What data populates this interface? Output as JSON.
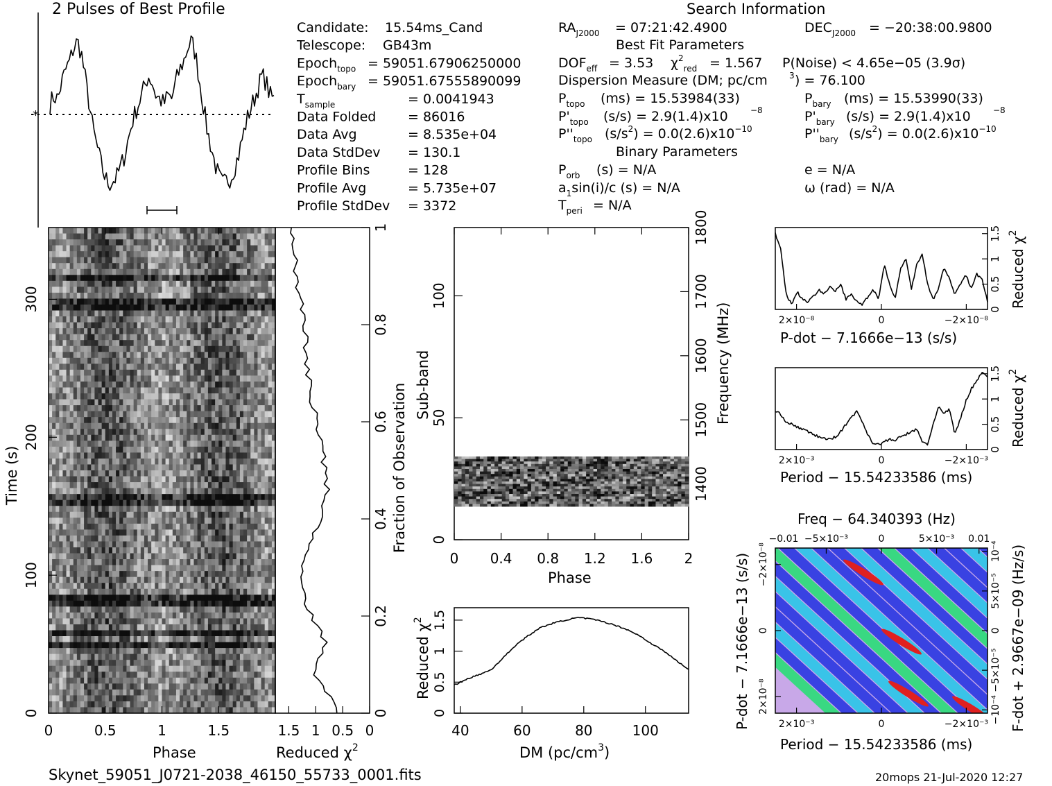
{
  "title": "2 Pulses of Best Profile",
  "search_heading": "Search Information",
  "best_fit_heading": "Best Fit Parameters",
  "binary_heading": "Binary Parameters",
  "filename": "Skynet_59051_J0721-2038_46150_55733_0001.fits",
  "footer_stamp": "20mops 21-Jul-2020 12:27",
  "info_left": [
    {
      "label": "Candidate:",
      "value": "15.54ms_Cand"
    },
    {
      "label": "Telescope:",
      "value": "GB43m"
    },
    {
      "label": "Epoch",
      "sub": "topo",
      "value": "= 59051.67906250000"
    },
    {
      "label": "Epoch",
      "sub": "bary",
      "value": "= 59051.67555890099"
    },
    {
      "label": "T",
      "sub": "sample",
      "value": "=   0.0041943"
    },
    {
      "label": "Data Folded",
      "value": "=   86016"
    },
    {
      "label": "Data Avg",
      "value": "=   8.535e+04"
    },
    {
      "label": "Data StdDev",
      "value": "=   130.1"
    },
    {
      "label": "Profile Bins",
      "value": "=   128"
    },
    {
      "label": "Profile Avg",
      "value": "=   5.735e+07"
    },
    {
      "label": "Profile StdDev",
      "value": "=   3372"
    }
  ],
  "info_mid": {
    "ra": "= 07:21:42.4900",
    "dec": "= −20:38:00.9800",
    "dof": "= 3.53",
    "chi2_red": "= 1.567",
    "p_noise": "P(Noise) < 4.65e−05   (3.9σ)",
    "dm": "Dispersion Measure (DM; pc/cm",
    "dm_value": ") = 76.100",
    "p_topo": "(ms) =  15.53984(33)",
    "p_bary": "(ms) =  15.53990(33)",
    "pd_topo": "(s/s) =  2.9(1.4)x10",
    "pd_bary": "(s/s) =  2.9(1.4)x10",
    "pd_exp": "−8",
    "pdd_topo": "(s/s",
    "pdd_topo_val": ") = 0.0(2.6)x10",
    "pdd_exp": "−10",
    "porb": "(s) = N/A",
    "a1": "a",
    "a1_rest": "sin(i)/c (s) = N/A",
    "tperi": "= N/A",
    "e": "e = N/A",
    "omega": "ω (rad) = N/A"
  },
  "labels": {
    "phase": "Phase",
    "time": "Time (s)",
    "reduced_chi2": "Reduced χ",
    "fraction": "Fraction of Observation",
    "subband": "Sub-band",
    "frequency": "Frequency (MHz)",
    "dm_axis": "DM (pc/cm",
    "pdot_axis": "P-dot − 7.1666e−13 (s/s)",
    "period_axis": "Period − 15.54233586 (ms)",
    "freq_axis": "Freq − 64.340393 (Hz)",
    "fdot_axis": "F-dot + 2.9667e−09 (Hz/s)"
  },
  "colors": {
    "grey_light": "#f4f4f4",
    "grey_dark": "#111111",
    "pp_low": "#2030e0",
    "pp_mid": "#20c8e8",
    "pp_green": "#20e070",
    "pp_red": "#e02020",
    "pp_bg": "#c8a8e8"
  },
  "chart_data": [
    {
      "type": "line",
      "title": "2 Pulses of Best Profile",
      "x_range": [
        0,
        2
      ],
      "series": [
        {
          "values": [
            0.55,
            0.6,
            0.58,
            0.68,
            0.75,
            0.8,
            0.88,
            0.92,
            0.85,
            0.7,
            0.55,
            0.4,
            0.3,
            0.2,
            0.12,
            0.08,
            0.1,
            0.12,
            0.18,
            0.25,
            0.35,
            0.45,
            0.52,
            0.58,
            0.65,
            0.72,
            0.68,
            0.6,
            0.58,
            0.55,
            0.6,
            0.58,
            0.68,
            0.75,
            0.8,
            0.88,
            0.92,
            0.85,
            0.7,
            0.55,
            0.4,
            0.3,
            0.2,
            0.12,
            0.08,
            0.1,
            0.12,
            0.18,
            0.25,
            0.35,
            0.45,
            0.52,
            0.58,
            0.65,
            0.72,
            0.68,
            0.6,
            0.58
          ]
        }
      ]
    },
    {
      "type": "heatmap",
      "xlabel": "Phase",
      "ylabel": "Time (s)",
      "x_ticks": [
        "0",
        "0.5",
        "1",
        "1.5"
      ],
      "y_ticks": [
        "0",
        "100",
        "200",
        "300"
      ],
      "y2label": "Fraction of Observation",
      "y2_ticks": [
        "0",
        "0.2",
        "0.4",
        "0.6",
        "0.8",
        "1"
      ]
    },
    {
      "type": "line",
      "xlabel": "Reduced χ",
      "x_ticks": [
        "1.5",
        "1",
        "0.5",
        "0"
      ],
      "series": [
        {
          "values": [
            0.05,
            0.18,
            0.35,
            0.55,
            0.4,
            0.3,
            0.45,
            0.6,
            0.72,
            0.8,
            0.78,
            0.7,
            0.62,
            0.55,
            0.42,
            0.35,
            0.25,
            0.28,
            0.33,
            0.38,
            0.42,
            0.48,
            0.55,
            0.58,
            0.62,
            0.7,
            0.68,
            0.72,
            0.75,
            0.78,
            0.82,
            0.88,
            0.92,
            0.95,
            0.98,
            1.0
          ]
        }
      ]
    },
    {
      "type": "heatmap",
      "xlabel": "Phase",
      "ylabel": "Sub-band",
      "x_ticks": [
        "0",
        "0.4",
        "0.8",
        "1.2",
        "1.6",
        "2"
      ],
      "y_ticks": [
        "0",
        "50",
        "100"
      ],
      "y2label": "Frequency (MHz)",
      "y2_ticks": [
        "1400",
        "1500",
        "1600",
        "1700",
        "1800"
      ]
    },
    {
      "type": "line",
      "xlabel": "DM (pc/cm3)",
      "ylabel": "Reduced χ",
      "x_ticks": [
        "40",
        "60",
        "80",
        "100"
      ],
      "y_ticks": [
        "0",
        "0.5",
        "1",
        "1.5"
      ],
      "x": [
        38,
        42,
        46,
        50,
        54,
        58,
        62,
        66,
        70,
        74,
        78,
        82,
        86,
        90,
        94,
        98,
        102,
        106,
        110,
        114
      ],
      "series": [
        {
          "values": [
            0.45,
            0.55,
            0.62,
            0.7,
            0.9,
            1.1,
            1.25,
            1.38,
            1.45,
            1.5,
            1.54,
            1.52,
            1.48,
            1.42,
            1.35,
            1.25,
            1.12,
            1.0,
            0.85,
            0.7
          ]
        }
      ]
    },
    {
      "type": "line",
      "xlabel": "P-dot − 7.1666e−13 (s/s)",
      "ylabel": "Reduced χ",
      "x_ticks": [
        "2×10⁻⁸",
        "0",
        "−2×10⁻⁸"
      ],
      "y_ticks": [
        "0",
        "0.5",
        "1",
        "1.5"
      ],
      "series": [
        {
          "values": [
            1.5,
            1.2,
            0.3,
            0.1,
            0.35,
            0.2,
            0.15,
            0.25,
            0.4,
            0.3,
            0.45,
            0.35,
            0.5,
            0.2,
            0.3,
            0.15,
            0.1,
            0.25,
            0.4,
            0.2,
            0.9,
            0.5,
            0.2,
            0.8,
            1.0,
            0.4,
            0.9,
            1.1,
            0.5,
            0.2,
            0.4,
            0.85,
            0.6,
            0.3,
            0.5,
            0.7,
            0.4,
            0.7,
            0.6,
            0.15
          ]
        }
      ]
    },
    {
      "type": "line",
      "xlabel": "Period − 15.54233586 (ms)",
      "ylabel": "Reduced χ",
      "x_ticks": [
        "2×10⁻³",
        "0",
        "−2×10⁻³"
      ],
      "y_ticks": [
        "0",
        "0.5",
        "1",
        "1.5"
      ],
      "series": [
        {
          "values": [
            0.75,
            0.7,
            0.55,
            0.5,
            0.45,
            0.4,
            0.35,
            0.3,
            0.25,
            0.22,
            0.2,
            0.25,
            0.35,
            0.5,
            0.65,
            0.75,
            0.55,
            0.3,
            0.12,
            0.1,
            0.15,
            0.2,
            0.18,
            0.25,
            0.3,
            0.35,
            0.4,
            0.15,
            0.1,
            0.5,
            0.85,
            0.7,
            0.8,
            0.3,
            0.6,
            0.95,
            1.2,
            1.35,
            1.55,
            1.45
          ]
        }
      ]
    },
    {
      "type": "heatmap",
      "xlabel": "Period − 15.54233586 (ms)",
      "ylabel": "P-dot − 7.1666e−13 (s/s)",
      "x_ticks": [
        "2×10⁻³",
        "0",
        "−2×10⁻³"
      ],
      "y_ticks": [
        "2×10⁻⁸",
        "0",
        "−2×10⁻⁸"
      ],
      "x2label": "Freq − 64.340393 (Hz)",
      "x2_ticks": [
        "−0.01",
        "−5×10⁻³",
        "0",
        "5×10⁻³",
        "0.01"
      ],
      "y2label": "F-dot + 2.9667e−09 (Hz/s)",
      "y2_ticks": [
        "−10⁻⁴",
        "−5×10⁻⁵",
        "0",
        "5×10⁻⁵",
        "10⁻⁴"
      ]
    }
  ]
}
